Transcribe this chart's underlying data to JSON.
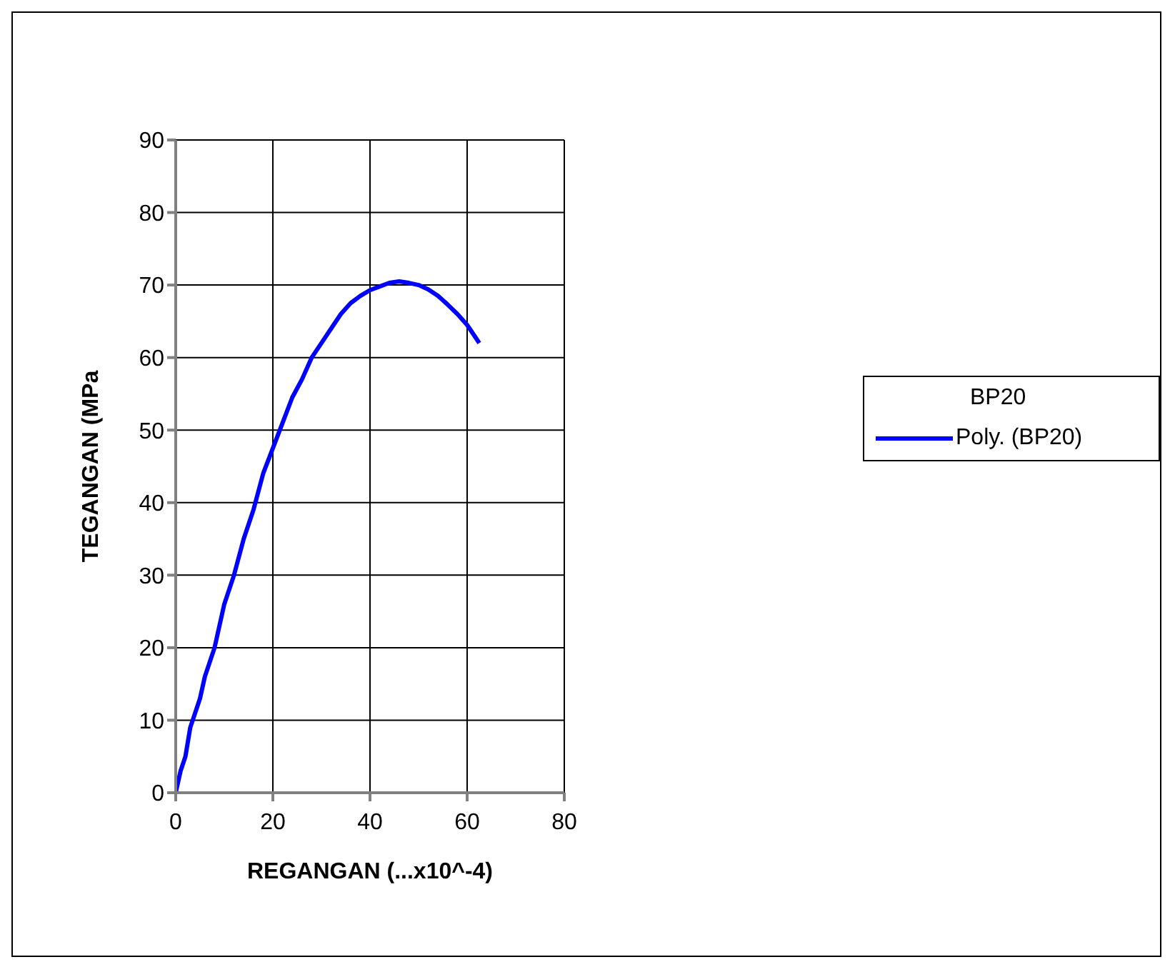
{
  "chart_data": {
    "type": "line",
    "xlabel": "REGANGAN (...x10^-4)",
    "ylabel": "TEGANGAN (MPa",
    "legend_title": "BP20",
    "legend": "right",
    "grid": true,
    "marker": "none",
    "line_style": "solid",
    "xlim": [
      0,
      80
    ],
    "xticks": [
      0,
      20,
      40,
      60,
      80
    ],
    "ylim": [
      0,
      90
    ],
    "yticks": [
      0,
      10,
      20,
      30,
      40,
      50,
      60,
      70,
      80,
      90
    ],
    "series": [
      {
        "name": "Poly. (BP20)",
        "color": "#0000ff",
        "x": [
          0,
          1,
          2,
          3,
          5,
          6,
          8,
          10,
          12,
          14,
          16,
          18,
          20,
          22,
          24,
          26,
          28,
          30,
          32,
          34,
          36,
          38,
          40,
          42,
          44,
          46,
          48,
          50,
          52,
          54,
          56,
          58,
          60,
          62,
          62.5
        ],
        "values": [
          0,
          3,
          5,
          9,
          13,
          16,
          20,
          26,
          30,
          35,
          39,
          44,
          47.5,
          51,
          54.5,
          57,
          60,
          62,
          64,
          66,
          67.5,
          68.5,
          69.3,
          69.8,
          70.3,
          70.5,
          70.3,
          70,
          69.4,
          68.5,
          67.3,
          66,
          64.5,
          62.5,
          62
        ]
      }
    ]
  }
}
